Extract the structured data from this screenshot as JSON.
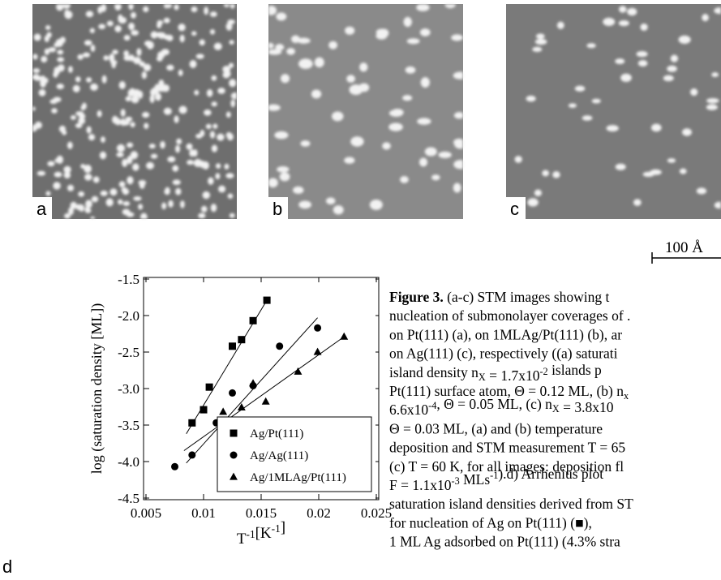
{
  "panels": {
    "labels": [
      "a",
      "b",
      "c",
      "d"
    ],
    "scale_bar": "100 Å"
  },
  "chart_data": {
    "type": "scatter",
    "xlabel": [
      "T",
      {
        "sup": "-1"
      },
      "[K",
      {
        "sup": "-1"
      },
      "]"
    ],
    "ylabel": "log (saturation density [ML])",
    "xlim": [
      0.005,
      0.025
    ],
    "xticks": [
      0.005,
      0.01,
      0.015,
      0.02,
      0.025
    ],
    "ylim": [
      -4.5,
      -1.5
    ],
    "yticks": [
      {
        "value": -1.5,
        "label": "-1.5"
      },
      {
        "value": -2,
        "label": "-2.0"
      },
      {
        "value": -2.5,
        "label": "-2.5"
      },
      {
        "value": -3,
        "label": "-3.0"
      },
      {
        "value": -3.5,
        "label": "-3.5"
      },
      {
        "value": -4,
        "label": "-4.0"
      },
      {
        "value": -4.5,
        "label": "-4.5"
      }
    ],
    "legend": "lower right",
    "series": [
      {
        "name": "Ag/Pt(111)",
        "marker": "square",
        "color": "#000000",
        "x": [
          0.009,
          0.01,
          0.0105,
          0.0125,
          0.0133,
          0.0143,
          0.0155
        ],
        "values": [
          -3.47,
          -3.29,
          -2.98,
          -2.42,
          -2.33,
          -2.07,
          -1.79
        ],
        "fit": {
          "x": [
            0.0085,
            0.0155
          ],
          "y": [
            -3.62,
            -1.79
          ]
        }
      },
      {
        "name": "Ag/Ag(111)",
        "marker": "circle",
        "color": "#000000",
        "x": [
          0.0075,
          0.009,
          0.0111,
          0.0125,
          0.0143,
          0.0166,
          0.0199
        ],
        "values": [
          -4.07,
          -3.91,
          -3.47,
          -3.06,
          -2.96,
          -2.42,
          -2.17
        ],
        "fit": {
          "x": [
            0.0085,
            0.0199
          ],
          "y": [
            -4.02,
            -2.03
          ]
        }
      },
      {
        "name": "Ag/1MLAg/Pt(111)",
        "marker": "triangle",
        "color": "#000000",
        "x": [
          0.0117,
          0.0133,
          0.0143,
          0.0154,
          0.0182,
          0.0199,
          0.0222
        ],
        "values": [
          -3.32,
          -3.26,
          -2.93,
          -3.18,
          -2.77,
          -2.5,
          -2.29
        ],
        "fit": {
          "x": [
            0.0083,
            0.0222
          ],
          "y": [
            -3.85,
            -2.29
          ]
        }
      }
    ]
  },
  "caption": {
    "lines": [
      [
        {
          "b": "Figure 3."
        },
        " (a-c) STM images showing t"
      ],
      [
        "nucleation of submonolayer coverages of ."
      ],
      [
        "on Pt(111) (a), on 1MLAg/Pt(111) (b), ar"
      ],
      [
        "on Ag(111) (c), respectively ((a) saturati"
      ],
      [
        "island density n",
        {
          "sub": "X"
        },
        " = 1.7x10",
        {
          "sup": "-2"
        },
        " islands p"
      ],
      [
        "Pt(111) surface atom, Θ = 0.12 ML, (b) n",
        {
          "sub": "x"
        }
      ],
      [
        "6.6x10",
        {
          "sup": "-4"
        },
        ", Θ = 0.05 ML, (c) n",
        {
          "sub": "X"
        },
        " = 3.8x10"
      ],
      [
        "Θ = 0.03 ML, (a) and (b) temperature"
      ],
      [
        "deposition and STM measurement T = 65"
      ],
      [
        "(c) T = 60 K, for all images: deposition fl"
      ],
      [
        "F = 1.1x10",
        {
          "sup": "-3"
        },
        " MLs",
        {
          "sup": "-1"
        },
        ").d) Arrhenius plot"
      ],
      [
        "saturation island densities derived from ST"
      ],
      [
        "for nucleation of Ag on Pt(111) (",
        "■",
        "),"
      ],
      [
        "1 ML Ag adsorbed on Pt(111) (4.3% stra"
      ]
    ]
  }
}
